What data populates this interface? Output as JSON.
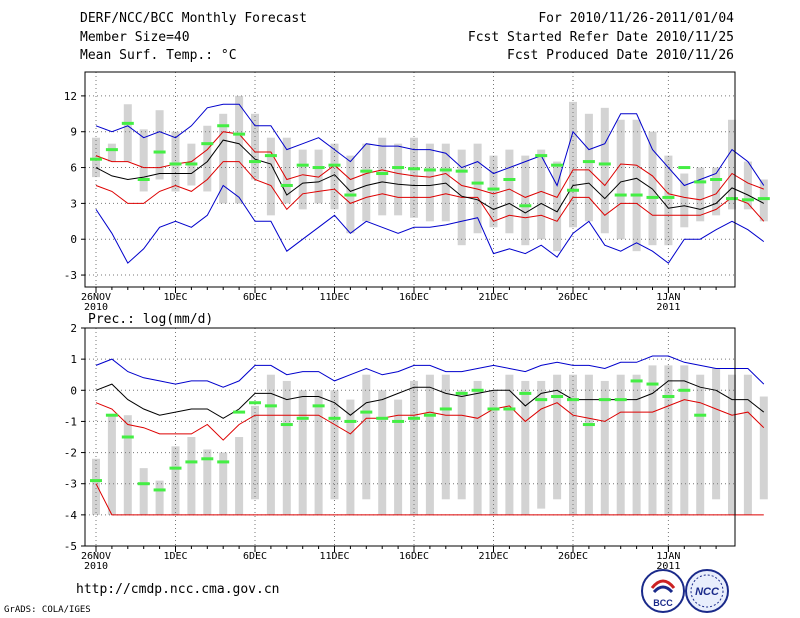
{
  "header": {
    "title": "DERF/NCC/BCC Monthly Forecast",
    "member_size": "Member Size=40",
    "variable": "Mean Surf. Temp.: °C",
    "period": "For 2010/11/26-2011/01/04",
    "started": "Fcst Started Refer Date 2010/11/25",
    "produced": "Fcst Produced Date 2010/11/26"
  },
  "footer": {
    "url": "http://cmdp.ncc.cma.gov.cn",
    "grads": "GrADS: COLA/IGES"
  },
  "logos": {
    "bcc": "BCC",
    "ncc": "NCC"
  },
  "colors": {
    "box": "#d3d3d3",
    "obs": "#44ee44",
    "mean": "#000000",
    "spread": "#dd0000",
    "extreme": "#0000cc",
    "grid": "#777777"
  },
  "chart_data": [
    {
      "type": "line",
      "title": "Mean Surf. Temp.: °C",
      "ylim": [
        -4,
        14
      ],
      "yticks": [
        -3,
        0,
        3,
        6,
        9,
        12
      ],
      "xticks": [
        {
          "label": "26NOV",
          "sub": "2010",
          "day": 0
        },
        {
          "label": "1DEC",
          "day": 5
        },
        {
          "label": "6DEC",
          "day": 10
        },
        {
          "label": "11DEC",
          "day": 15
        },
        {
          "label": "16DEC",
          "day": 20
        },
        {
          "label": "21DEC",
          "day": 25
        },
        {
          "label": "26DEC",
          "day": 30
        },
        {
          "label": "1JAN",
          "sub": "2011",
          "day": 36
        }
      ],
      "days": 40,
      "series": [
        {
          "name": "max",
          "color": "#0000cc",
          "values": [
            2.5,
            0.5,
            -2.0,
            -0.8,
            1.0,
            1.5,
            1.0,
            2.0,
            4.5,
            3.5,
            1.5,
            1.5,
            -1.0,
            0.0,
            1.0,
            2.0,
            0.5,
            1.5,
            1.0,
            0.5,
            1.0,
            1.0,
            1.2,
            1.5,
            1.8,
            -1.2,
            -0.8,
            -1.2,
            -0.5,
            -1.5,
            0.5,
            1.5,
            -0.5,
            -1.0,
            -0.3,
            -1.0,
            -2.0,
            0.0,
            0.0,
            0.8,
            1.5,
            0.8,
            -0.2
          ]
        },
        {
          "name": "p25",
          "color": "#dd0000",
          "values": [
            4.5,
            4.0,
            3.0,
            3.0,
            4.0,
            4.5,
            4.0,
            5.0,
            6.5,
            6.5,
            5.0,
            4.5,
            2.5,
            3.8,
            4.0,
            4.2,
            3.0,
            3.5,
            3.8,
            3.5,
            3.5,
            3.5,
            3.8,
            3.5,
            3.5,
            1.5,
            2.0,
            1.8,
            2.0,
            1.5,
            3.5,
            3.5,
            2.0,
            3.0,
            3.0,
            2.0,
            2.0,
            2.0,
            2.0,
            2.5,
            3.5,
            3.0,
            1.5
          ]
        },
        {
          "name": "mean",
          "color": "#000000",
          "values": [
            6.0,
            5.3,
            5.0,
            5.2,
            5.5,
            5.5,
            5.5,
            6.5,
            8.3,
            8.0,
            6.7,
            6.3,
            3.7,
            4.7,
            4.8,
            5.4,
            4.0,
            4.5,
            4.8,
            4.6,
            4.5,
            4.5,
            4.7,
            3.6,
            3.3,
            2.5,
            3.0,
            2.2,
            3.0,
            2.3,
            4.5,
            4.7,
            3.4,
            4.8,
            5.1,
            4.2,
            2.6,
            2.8,
            2.5,
            3.0,
            4.3,
            3.7,
            3.0
          ]
        },
        {
          "name": "p75",
          "color": "#dd0000",
          "values": [
            7.0,
            6.5,
            6.5,
            6.0,
            6.0,
            6.3,
            6.5,
            7.5,
            9.0,
            8.8,
            7.3,
            7.3,
            5.0,
            5.4,
            5.2,
            6.2,
            5.0,
            5.5,
            5.8,
            5.5,
            5.3,
            5.2,
            5.5,
            4.5,
            4.2,
            3.8,
            4.2,
            3.5,
            4.0,
            3.5,
            5.8,
            5.8,
            4.5,
            6.3,
            6.2,
            5.3,
            3.8,
            3.5,
            3.3,
            3.8,
            5.5,
            4.7,
            4.2
          ]
        },
        {
          "name": "min",
          "color": "#0000cc",
          "values": [
            9.5,
            9.0,
            9.5,
            8.5,
            9.0,
            8.5,
            9.5,
            11.0,
            11.3,
            11.3,
            9.5,
            9.5,
            7.5,
            8.0,
            8.5,
            7.5,
            6.5,
            8.0,
            7.8,
            7.8,
            7.5,
            7.5,
            7.2,
            6.0,
            6.5,
            5.5,
            6.0,
            6.5,
            7.0,
            4.5,
            9.0,
            7.5,
            8.0,
            10.5,
            10.5,
            7.5,
            6.0,
            4.5,
            5.0,
            5.5,
            7.5,
            6.5,
            4.5
          ]
        }
      ],
      "boxes": [
        [
          5.2,
          8.5
        ],
        [
          6.5,
          8.0
        ],
        [
          6.5,
          11.3
        ],
        [
          4.0,
          9.2
        ],
        [
          5.0,
          10.8
        ],
        [
          4.0,
          9.0
        ],
        [
          4.5,
          8.0
        ],
        [
          4.0,
          9.5
        ],
        [
          3.0,
          10.5
        ],
        [
          3.0,
          12.0
        ],
        [
          5.0,
          10.5
        ],
        [
          2.0,
          8.5
        ],
        [
          3.0,
          8.5
        ],
        [
          2.5,
          7.5
        ],
        [
          3.0,
          7.5
        ],
        [
          2.5,
          8.0
        ],
        [
          0.5,
          7.0
        ],
        [
          1.5,
          8.0
        ],
        [
          2.0,
          8.5
        ],
        [
          2.0,
          8.0
        ],
        [
          1.8,
          8.5
        ],
        [
          1.5,
          8.0
        ],
        [
          1.5,
          8.0
        ],
        [
          -0.5,
          7.5
        ],
        [
          0.5,
          8.0
        ],
        [
          1.0,
          7.0
        ],
        [
          0.5,
          7.5
        ],
        [
          -0.5,
          7.0
        ],
        [
          0.0,
          7.5
        ],
        [
          -1.0,
          6.5
        ],
        [
          1.0,
          11.5
        ],
        [
          1.5,
          10.5
        ],
        [
          0.5,
          11.0
        ],
        [
          0.0,
          10.0
        ],
        [
          -1.0,
          10.0
        ],
        [
          -0.5,
          9.0
        ],
        [
          -0.5,
          7.0
        ],
        [
          1.0,
          5.5
        ],
        [
          1.5,
          6.0
        ],
        [
          2.0,
          6.0
        ],
        [
          2.5,
          10.0
        ],
        [
          2.5,
          6.5
        ],
        [
          1.5,
          5.0
        ]
      ],
      "obs": [
        6.7,
        7.5,
        9.7,
        5.0,
        7.3,
        6.3,
        6.3,
        8.0,
        9.5,
        8.8,
        6.5,
        7.0,
        4.5,
        6.2,
        6.0,
        6.2,
        3.7,
        5.7,
        5.5,
        6.0,
        5.9,
        5.8,
        5.8,
        5.7,
        4.7,
        4.2,
        5.0,
        2.8,
        7.0,
        6.2,
        4.1,
        6.5,
        6.3,
        3.7,
        3.7,
        3.5,
        3.5,
        6.0,
        4.8,
        5.0,
        3.4,
        3.3,
        3.4
      ]
    },
    {
      "type": "line",
      "title": "Prec.: log(mm/d)",
      "ylim": [
        -5,
        2
      ],
      "yticks": [
        -5,
        -4,
        -3,
        -2,
        -1,
        0,
        1,
        2
      ],
      "xticks": [
        {
          "label": "26NOV",
          "sub": "2010",
          "day": 0
        },
        {
          "label": "1DEC",
          "day": 5
        },
        {
          "label": "6DEC",
          "day": 10
        },
        {
          "label": "11DEC",
          "day": 15
        },
        {
          "label": "16DEC",
          "day": 20
        },
        {
          "label": "21DEC",
          "day": 25
        },
        {
          "label": "26DEC",
          "day": 30
        },
        {
          "label": "1JAN",
          "sub": "2011",
          "day": 36
        }
      ],
      "days": 40,
      "series": [
        {
          "name": "max",
          "color": "#0000cc",
          "values": [
            0.8,
            1.0,
            0.6,
            0.4,
            0.3,
            0.2,
            0.3,
            0.3,
            0.1,
            0.3,
            0.8,
            0.8,
            0.5,
            0.6,
            0.6,
            0.3,
            0.5,
            0.7,
            0.5,
            0.6,
            0.8,
            0.8,
            0.6,
            0.6,
            0.7,
            0.8,
            0.7,
            0.6,
            0.8,
            0.9,
            0.8,
            0.8,
            0.7,
            0.9,
            0.9,
            1.1,
            1.1,
            0.9,
            0.8,
            0.7,
            0.7,
            0.7,
            0.2
          ]
        },
        {
          "name": "p75",
          "color": "#000000",
          "values": [
            0.0,
            0.2,
            -0.3,
            -0.6,
            -0.8,
            -0.7,
            -0.6,
            -0.6,
            -0.9,
            -0.6,
            -0.1,
            -0.1,
            -0.3,
            -0.2,
            -0.2,
            -0.4,
            -0.8,
            -0.4,
            -0.3,
            -0.1,
            0.1,
            0.1,
            -0.1,
            -0.2,
            -0.1,
            0.0,
            0.0,
            -0.5,
            -0.1,
            0.0,
            -0.3,
            -0.3,
            -0.3,
            -0.3,
            -0.3,
            -0.1,
            0.3,
            0.3,
            0.1,
            0.0,
            -0.3,
            -0.3,
            -0.7
          ]
        },
        {
          "name": "median",
          "color": "#dd0000",
          "values": [
            -0.4,
            -0.6,
            -1.1,
            -1.2,
            -1.4,
            -1.4,
            -1.4,
            -1.1,
            -1.6,
            -1.1,
            -0.8,
            -0.8,
            -0.8,
            -0.8,
            -0.8,
            -1.1,
            -1.4,
            -0.9,
            -0.9,
            -0.8,
            -0.8,
            -0.7,
            -0.8,
            -0.8,
            -0.9,
            -0.6,
            -0.5,
            -1.0,
            -0.6,
            -0.4,
            -0.8,
            -0.9,
            -1.0,
            -0.7,
            -0.7,
            -0.7,
            -0.5,
            -0.3,
            -0.4,
            -0.6,
            -0.8,
            -0.7,
            -1.2
          ]
        },
        {
          "name": "min",
          "color": "#dd0000",
          "values": [
            -3.0,
            -4.0,
            -4.0,
            -4.0,
            -4.0,
            -4.0,
            -4.0,
            -4.0,
            -4.0,
            -4.0,
            -4.0,
            -4.0,
            -4.0,
            -4.0,
            -4.0,
            -4.0,
            -4.0,
            -4.0,
            -4.0,
            -4.0,
            -4.0,
            -4.0,
            -4.0,
            -4.0,
            -4.0,
            -4.0,
            -4.0,
            -4.0,
            -4.0,
            -4.0,
            -4.0,
            -4.0,
            -4.0,
            -4.0,
            -4.0,
            -4.0,
            -4.0,
            -4.0,
            -4.0,
            -4.0,
            -4.0,
            -4.0,
            -4.0
          ]
        }
      ],
      "boxes": [
        [
          -4.0,
          -2.2
        ],
        [
          -4.0,
          -0.8
        ],
        [
          -4.0,
          -0.8
        ],
        [
          -4.0,
          -2.5
        ],
        [
          -4.0,
          -2.9
        ],
        [
          -4.0,
          -1.8
        ],
        [
          -4.0,
          -1.5
        ],
        [
          -4.0,
          -1.9
        ],
        [
          -4.0,
          -2.0
        ],
        [
          -4.0,
          -1.5
        ],
        [
          -3.5,
          -0.5
        ],
        [
          -4.0,
          0.5
        ],
        [
          -4.0,
          0.3
        ],
        [
          -4.0,
          0.0
        ],
        [
          -4.0,
          0.0
        ],
        [
          -3.5,
          0.0
        ],
        [
          -4.0,
          -0.3
        ],
        [
          -3.5,
          0.5
        ],
        [
          -4.0,
          0.0
        ],
        [
          -4.0,
          -0.3
        ],
        [
          -4.0,
          0.3
        ],
        [
          -4.0,
          0.5
        ],
        [
          -3.5,
          0.5
        ],
        [
          -3.5,
          0.0
        ],
        [
          -4.0,
          0.3
        ],
        [
          -4.0,
          0.0
        ],
        [
          -4.0,
          0.5
        ],
        [
          -4.0,
          0.3
        ],
        [
          -3.8,
          0.3
        ],
        [
          -3.5,
          0.5
        ],
        [
          -4.0,
          0.5
        ],
        [
          -4.0,
          0.5
        ],
        [
          -4.0,
          0.3
        ],
        [
          -4.0,
          0.5
        ],
        [
          -4.0,
          0.5
        ],
        [
          -4.0,
          0.8
        ],
        [
          -4.0,
          0.8
        ],
        [
          -4.0,
          0.8
        ],
        [
          -4.0,
          0.5
        ],
        [
          -3.5,
          0.7
        ],
        [
          -4.0,
          0.5
        ],
        [
          -4.0,
          0.5
        ],
        [
          -3.5,
          -0.2
        ]
      ],
      "obs": [
        -2.9,
        -0.8,
        -1.5,
        -3.0,
        -3.2,
        -2.5,
        -2.3,
        -2.2,
        -2.3,
        -0.7,
        -0.4,
        -0.5,
        -1.1,
        -0.9,
        -0.5,
        -0.9,
        -1.0,
        -0.7,
        -0.9,
        -1.0,
        -0.9,
        -0.8,
        -0.6,
        -0.1,
        0.0,
        -0.6,
        -0.6,
        -0.1,
        -0.3,
        -0.2,
        -0.3,
        -1.1,
        -0.3,
        -0.3,
        0.3,
        0.2,
        -0.2,
        0.0,
        -0.8
      ]
    }
  ]
}
